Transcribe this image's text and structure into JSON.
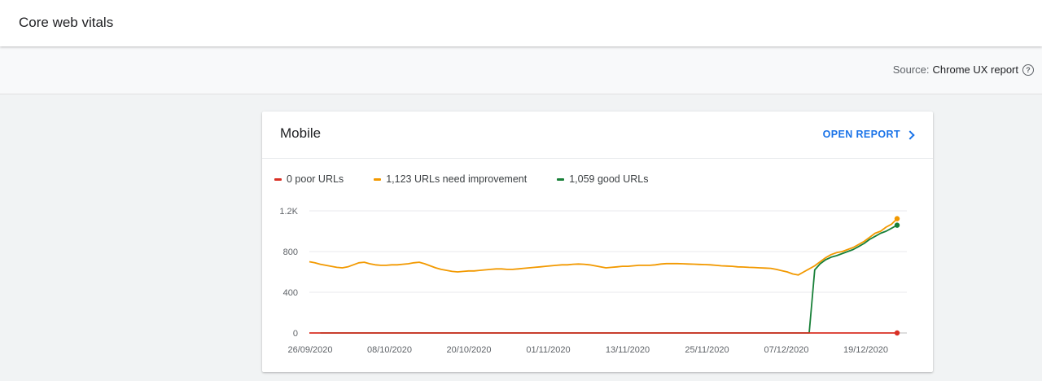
{
  "header": {
    "title": "Core web vitals"
  },
  "source": {
    "label": "Source:",
    "value": "Chrome UX report",
    "help_icon": "help-circle-icon"
  },
  "card": {
    "title": "Mobile",
    "open_report_label": "OPEN REPORT",
    "legend": [
      {
        "label": "0 poor URLs",
        "color": "#d93025"
      },
      {
        "label": "1,123 URLs need improvement",
        "color": "#f29900"
      },
      {
        "label": "1,059 good URLs",
        "color": "#188038"
      }
    ]
  },
  "chart_data": {
    "type": "line",
    "x_labels": [
      "26/09/2020",
      "08/10/2020",
      "20/10/2020",
      "01/11/2020",
      "13/11/2020",
      "25/11/2020",
      "07/12/2020",
      "19/12/2020"
    ],
    "y_ticks": [
      "0",
      "400",
      "800",
      "1.2K"
    ],
    "ylim": [
      0,
      1200
    ],
    "grid": true,
    "legend": "top-left",
    "series": [
      {
        "name": "1,123 URLs need improvement",
        "color": "#f29900",
        "values": [
          700,
          690,
          675,
          665,
          655,
          645,
          640,
          650,
          670,
          690,
          695,
          680,
          670,
          665,
          665,
          670,
          670,
          675,
          680,
          690,
          695,
          680,
          660,
          640,
          625,
          615,
          605,
          600,
          605,
          610,
          610,
          615,
          620,
          625,
          630,
          630,
          625,
          625,
          630,
          635,
          640,
          645,
          650,
          655,
          660,
          665,
          670,
          670,
          675,
          678,
          675,
          670,
          660,
          650,
          640,
          645,
          650,
          655,
          655,
          660,
          665,
          665,
          665,
          670,
          678,
          682,
          682,
          682,
          680,
          678,
          676,
          674,
          672,
          670,
          665,
          660,
          658,
          655,
          650,
          648,
          645,
          643,
          640,
          638,
          635,
          625,
          612,
          600,
          580,
          570,
          600,
          630,
          660,
          700,
          740,
          770,
          790,
          800,
          820,
          840,
          870,
          900,
          940,
          980,
          1000,
          1040,
          1070,
          1123
        ]
      },
      {
        "name": "1,059 good URLs",
        "color": "#188038",
        "values": [
          0,
          0,
          0,
          0,
          0,
          0,
          0,
          0,
          0,
          0,
          0,
          0,
          0,
          0,
          0,
          0,
          0,
          0,
          0,
          0,
          0,
          0,
          0,
          0,
          0,
          0,
          0,
          0,
          0,
          0,
          0,
          0,
          0,
          0,
          0,
          0,
          0,
          0,
          0,
          0,
          0,
          0,
          0,
          0,
          0,
          0,
          0,
          0,
          0,
          0,
          0,
          0,
          0,
          0,
          0,
          0,
          0,
          0,
          0,
          0,
          0,
          0,
          0,
          0,
          0,
          0,
          0,
          0,
          0,
          0,
          0,
          0,
          0,
          0,
          0,
          0,
          0,
          0,
          0,
          0,
          0,
          0,
          0,
          0,
          0,
          0,
          0,
          0,
          0,
          0,
          620,
          680,
          720,
          745,
          760,
          780,
          800,
          820,
          850,
          880,
          920,
          950,
          980,
          1000,
          1030,
          1059
        ]
      },
      {
        "name": "0 poor URLs",
        "color": "#d93025",
        "values": [
          0,
          0,
          0,
          0,
          0,
          0,
          0,
          0,
          0,
          0,
          0,
          0,
          0,
          0,
          0,
          0,
          0,
          0,
          0,
          0,
          0,
          0,
          0,
          0,
          0,
          0,
          0,
          0,
          0,
          0,
          0,
          0,
          0,
          0,
          0,
          0,
          0,
          0,
          0,
          0,
          0,
          0,
          0,
          0,
          0,
          0,
          0,
          0,
          0,
          0,
          0,
          0,
          0,
          0,
          0,
          0,
          0,
          0,
          0,
          0,
          0,
          0,
          0,
          0,
          0,
          0,
          0,
          0,
          0,
          0,
          0,
          0,
          0,
          0,
          0,
          0,
          0,
          0,
          0,
          0,
          0,
          0,
          0,
          0,
          0,
          0,
          0,
          0,
          0,
          0,
          0,
          0,
          0,
          0,
          0,
          0,
          0,
          0,
          0,
          0,
          0,
          0,
          0,
          0,
          0,
          0,
          0,
          0
        ]
      }
    ]
  }
}
